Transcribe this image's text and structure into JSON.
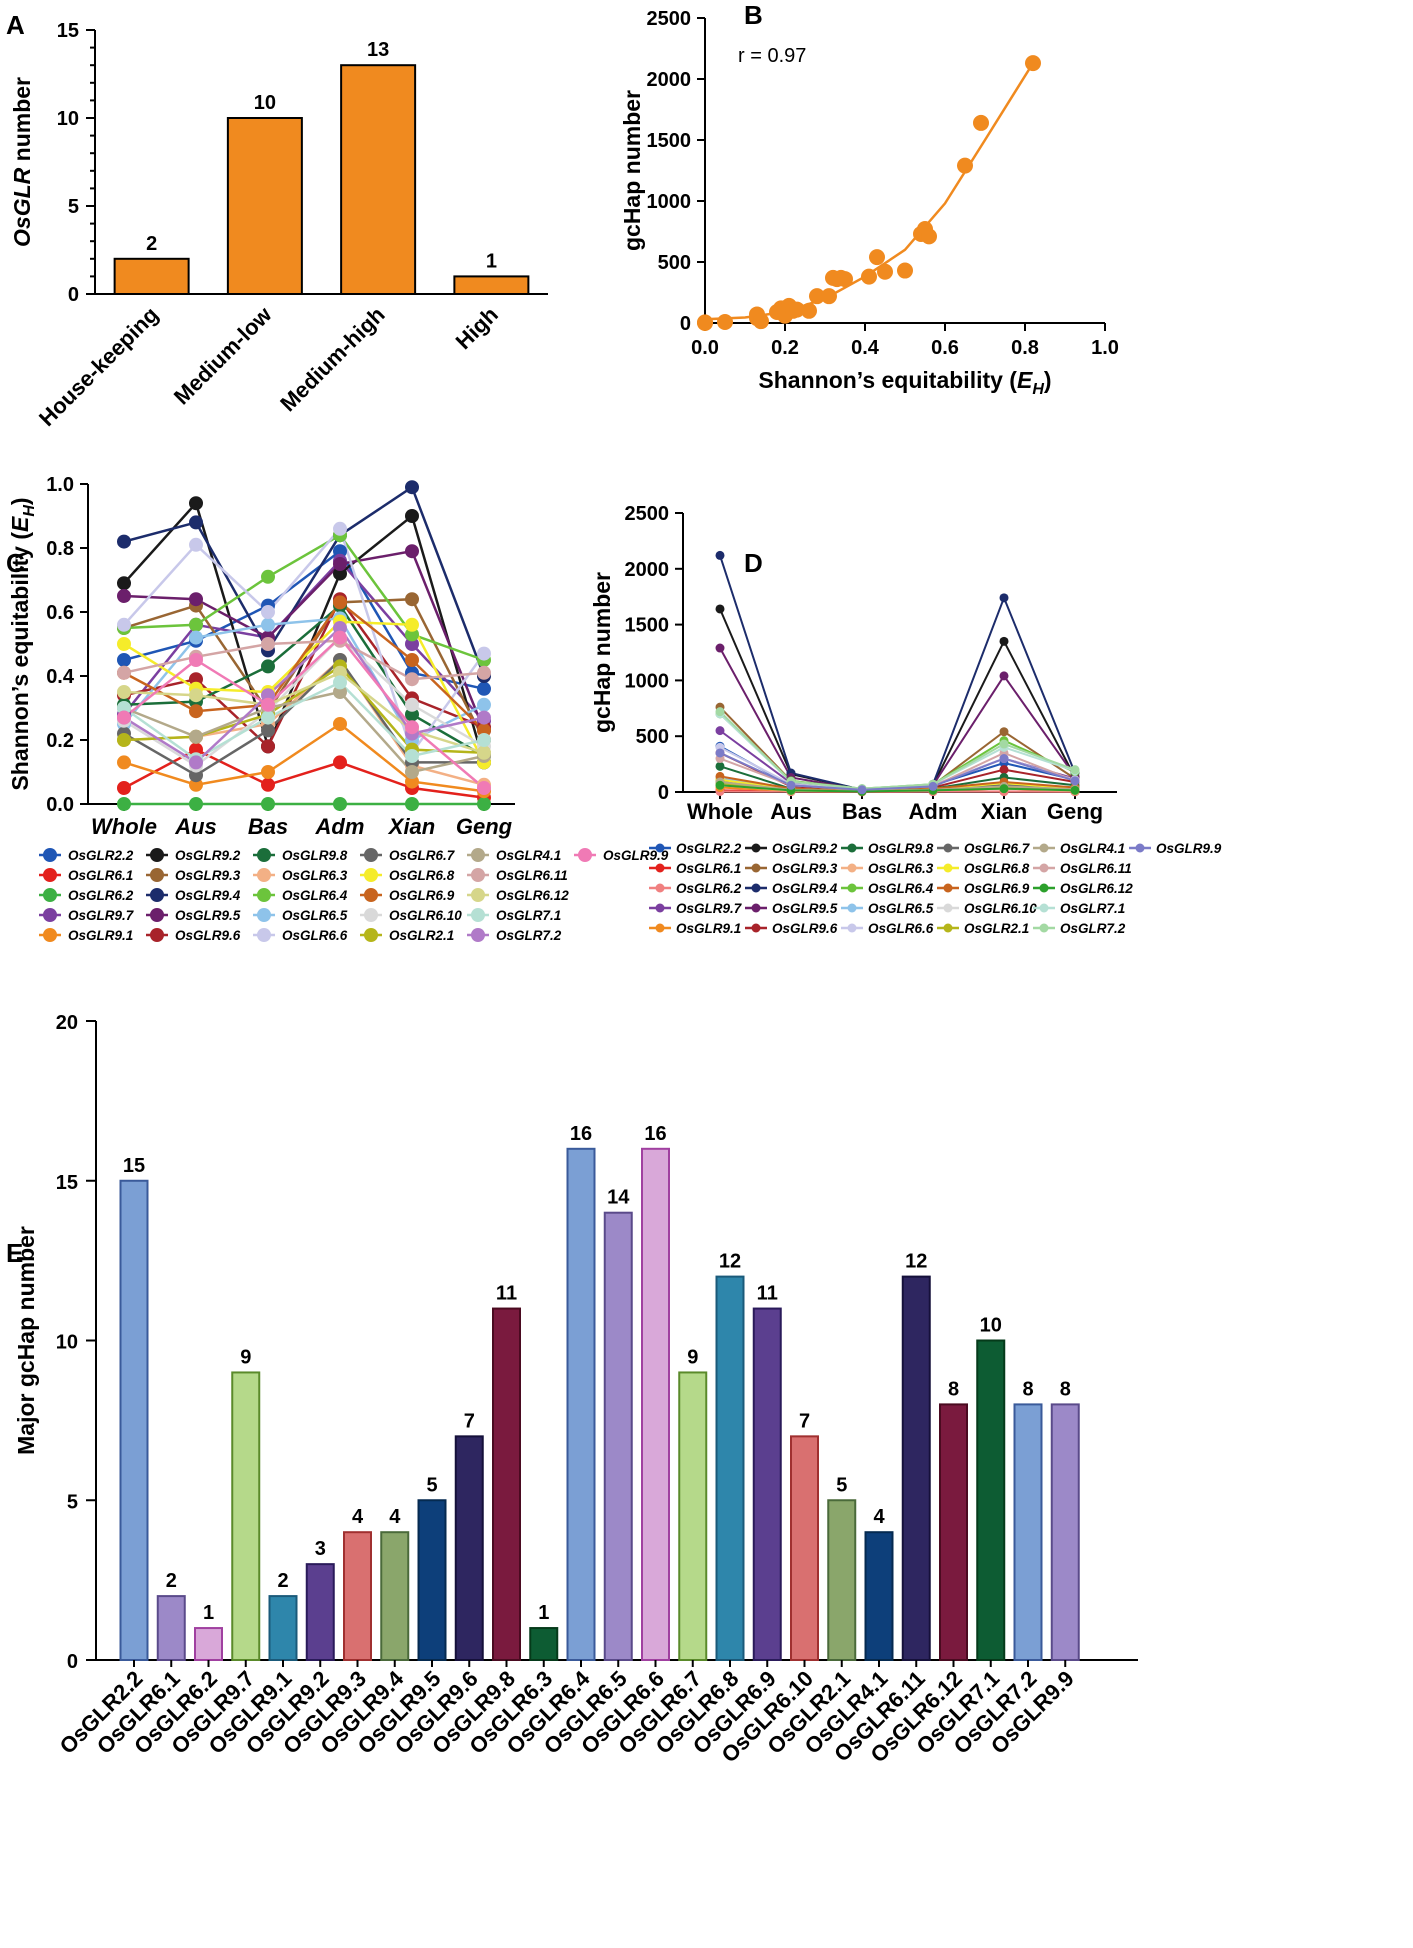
{
  "figure": {
    "panel_labels": [
      "A",
      "B",
      "C",
      "D",
      "E"
    ]
  },
  "chart_data": [
    {
      "panel": "A",
      "type": "bar",
      "color": "#f08a1f",
      "categories": [
        "House-keeping",
        "Medium-low",
        "Medium-high",
        "High"
      ],
      "values": [
        2,
        10,
        13,
        1
      ],
      "ylabel_italic": "OsGLR",
      "ylabel_rest": " number",
      "ylim": [
        0,
        15
      ],
      "yticks": [
        0,
        5,
        10,
        15
      ]
    },
    {
      "panel": "B",
      "type": "scatter",
      "color": "#f08a1f",
      "annotation": "r = 0.97",
      "xlabel_pre": "Shannon’s equitability (",
      "xlabel_var": "E",
      "xlabel_sub": "H",
      "xlabel_post": ")",
      "ylabel": "gcHap number",
      "xlim": [
        0,
        1
      ],
      "ylim": [
        0,
        2500
      ],
      "xticks": [
        0.0,
        0.2,
        0.4,
        0.6,
        0.8,
        1.0
      ],
      "xtick_labels": [
        "0.0",
        "0.2",
        "0.4",
        "0.6",
        "0.8",
        "1.0"
      ],
      "yticks": [
        0,
        500,
        1000,
        1500,
        2000,
        2500
      ],
      "points": [
        [
          0,
          0
        ],
        [
          0,
          5
        ],
        [
          0.05,
          8
        ],
        [
          0.13,
          40
        ],
        [
          0.13,
          70
        ],
        [
          0.14,
          15
        ],
        [
          0.18,
          90
        ],
        [
          0.19,
          120
        ],
        [
          0.2,
          60
        ],
        [
          0.21,
          140
        ],
        [
          0.22,
          100
        ],
        [
          0.23,
          110
        ],
        [
          0.26,
          100
        ],
        [
          0.28,
          220
        ],
        [
          0.31,
          220
        ],
        [
          0.32,
          370
        ],
        [
          0.33,
          360
        ],
        [
          0.34,
          370
        ],
        [
          0.35,
          360
        ],
        [
          0.41,
          380
        ],
        [
          0.43,
          540
        ],
        [
          0.45,
          420
        ],
        [
          0.5,
          430
        ],
        [
          0.54,
          730
        ],
        [
          0.55,
          770
        ],
        [
          0.56,
          710
        ],
        [
          0.65,
          1290
        ],
        [
          0.69,
          1640
        ],
        [
          0.82,
          2130
        ]
      ],
      "fit_curve": [
        [
          0,
          30
        ],
        [
          0.1,
          45
        ],
        [
          0.2,
          90
        ],
        [
          0.3,
          200
        ],
        [
          0.4,
          380
        ],
        [
          0.5,
          600
        ],
        [
          0.6,
          980
        ],
        [
          0.7,
          1500
        ],
        [
          0.82,
          2130
        ]
      ]
    },
    {
      "panel": "C",
      "type": "line",
      "categories": [
        "Whole",
        "Aus",
        "Bas",
        "Adm",
        "Xian",
        "Geng"
      ],
      "ylabel_pre": "Shannon’s equitability (",
      "ylabel_var": "E",
      "ylabel_sub": "H",
      "ylabel_post": ")",
      "ylim": [
        0,
        1
      ],
      "yticks": [
        0.0,
        0.2,
        0.4,
        0.6,
        0.8,
        1.0
      ],
      "ytick_labels": [
        "0.0",
        "0.2",
        "0.4",
        "0.6",
        "0.8",
        "1.0"
      ],
      "series": [
        {
          "name": "OsGLR2.2",
          "color": "#1f56b5",
          "values": [
            0.45,
            0.51,
            0.62,
            0.79,
            0.41,
            0.36
          ]
        },
        {
          "name": "OsGLR6.1",
          "color": "#e3211c",
          "values": [
            0.05,
            0.17,
            0.06,
            0.13,
            0.05,
            0.02
          ]
        },
        {
          "name": "OsGLR6.2",
          "color": "#3cb043",
          "values": [
            0,
            0,
            0,
            0,
            0,
            0
          ]
        },
        {
          "name": "OsGLR9.7",
          "color": "#7b3fa0",
          "values": [
            0.28,
            0.56,
            0.52,
            0.76,
            0.5,
            0.26
          ]
        },
        {
          "name": "OsGLR9.1",
          "color": "#f08a1f",
          "values": [
            0.13,
            0.06,
            0.1,
            0.25,
            0.07,
            0.04
          ]
        },
        {
          "name": "OsGLR9.2",
          "color": "#1a1a1a",
          "values": [
            0.69,
            0.94,
            0.18,
            0.72,
            0.9,
            0.13
          ]
        },
        {
          "name": "OsGLR9.3",
          "color": "#996633",
          "values": [
            0.55,
            0.62,
            0.29,
            0.63,
            0.64,
            0.2
          ]
        },
        {
          "name": "OsGLR9.4",
          "color": "#1c2c6b",
          "values": [
            0.82,
            0.88,
            0.48,
            0.84,
            0.99,
            0.4
          ]
        },
        {
          "name": "OsGLR9.5",
          "color": "#6b1f6b",
          "values": [
            0.65,
            0.64,
            0.52,
            0.75,
            0.79,
            0.23
          ]
        },
        {
          "name": "OsGLR9.6",
          "color": "#a8232a",
          "values": [
            0.34,
            0.39,
            0.18,
            0.64,
            0.33,
            0.24
          ]
        },
        {
          "name": "OsGLR9.8",
          "color": "#1b6e3a",
          "values": [
            0.31,
            0.32,
            0.43,
            0.62,
            0.28,
            0.15
          ]
        },
        {
          "name": "OsGLR6.3",
          "color": "#f3b085",
          "values": [
            0.2,
            0.21,
            0.25,
            0.45,
            0.12,
            0.06
          ]
        },
        {
          "name": "OsGLR6.4",
          "color": "#6cc43c",
          "values": [
            0.55,
            0.56,
            0.71,
            0.84,
            0.53,
            0.45
          ]
        },
        {
          "name": "OsGLR6.5",
          "color": "#8ec3ea",
          "values": [
            0.25,
            0.52,
            0.56,
            0.58,
            0.2,
            0.31
          ]
        },
        {
          "name": "OsGLR6.6",
          "color": "#c8c8ea",
          "values": [
            0.56,
            0.81,
            0.6,
            0.86,
            0.16,
            0.47
          ]
        },
        {
          "name": "OsGLR6.7",
          "color": "#666666",
          "values": [
            0.22,
            0.09,
            0.23,
            0.45,
            0.13,
            0.13
          ]
        },
        {
          "name": "OsGLR6.8",
          "color": "#f5ec2a",
          "values": [
            0.5,
            0.36,
            0.35,
            0.57,
            0.56,
            0.13
          ]
        },
        {
          "name": "OsGLR6.9",
          "color": "#c8641e",
          "values": [
            0.41,
            0.29,
            0.31,
            0.63,
            0.45,
            0.23
          ]
        },
        {
          "name": "OsGLR6.10",
          "color": "#d9d9d9",
          "values": [
            0.26,
            0.12,
            0.29,
            0.52,
            0.31,
            0.18
          ]
        },
        {
          "name": "OsGLR2.1",
          "color": "#b5b51a",
          "values": [
            0.2,
            0.21,
            0.28,
            0.43,
            0.17,
            0.16
          ]
        },
        {
          "name": "OsGLR4.1",
          "color": "#b3a98a",
          "values": [
            0.3,
            0.21,
            0.3,
            0.35,
            0.1,
            0.15
          ]
        },
        {
          "name": "OsGLR6.11",
          "color": "#d4a5a5",
          "values": [
            0.41,
            0.46,
            0.5,
            0.51,
            0.39,
            0.41
          ]
        },
        {
          "name": "OsGLR6.12",
          "color": "#d6d68a",
          "values": [
            0.35,
            0.34,
            0.31,
            0.41,
            0.23,
            0.16
          ]
        },
        {
          "name": "OsGLR7.1",
          "color": "#b5e0d4",
          "values": [
            0.3,
            0.14,
            0.27,
            0.38,
            0.15,
            0.2
          ]
        },
        {
          "name": "OsGLR7.2",
          "color": "#b07ac8",
          "values": [
            0.27,
            0.13,
            0.34,
            0.55,
            0.22,
            0.27
          ]
        },
        {
          "name": "OsGLR9.9",
          "color": "#f07ab5",
          "values": [
            0.27,
            0.45,
            0.31,
            0.52,
            0.24,
            0.05
          ]
        }
      ]
    },
    {
      "panel": "D",
      "type": "line",
      "categories": [
        "Whole",
        "Aus",
        "Bas",
        "Adm",
        "Xian",
        "Geng"
      ],
      "ylabel": "gcHap number",
      "ylim": [
        0,
        2500
      ],
      "yticks": [
        0,
        500,
        1000,
        1500,
        2000,
        2500
      ],
      "series": [
        {
          "name": "OsGLR2.2",
          "color": "#1f56b5",
          "values": [
            410,
            60,
            20,
            60,
            260,
            110
          ]
        },
        {
          "name": "OsGLR6.1",
          "color": "#e3211c",
          "values": [
            15,
            5,
            2,
            5,
            5,
            3
          ]
        },
        {
          "name": "OsGLR6.2",
          "color": "#f08080",
          "values": [
            5,
            3,
            2,
            3,
            3,
            2
          ]
        },
        {
          "name": "OsGLR9.7",
          "color": "#7b3fa0",
          "values": [
            550,
            80,
            20,
            60,
            300,
            120
          ]
        },
        {
          "name": "OsGLR9.1",
          "color": "#f08a1f",
          "values": [
            40,
            10,
            5,
            15,
            30,
            10
          ]
        },
        {
          "name": "OsGLR9.2",
          "color": "#1a1a1a",
          "values": [
            1640,
            160,
            20,
            60,
            1350,
            130
          ]
        },
        {
          "name": "OsGLR9.3",
          "color": "#996633",
          "values": [
            760,
            100,
            20,
            60,
            540,
            120
          ]
        },
        {
          "name": "OsGLR9.4",
          "color": "#1c2c6b",
          "values": [
            2120,
            170,
            20,
            70,
            1740,
            170
          ]
        },
        {
          "name": "OsGLR9.5",
          "color": "#6b1f6b",
          "values": [
            1290,
            130,
            20,
            60,
            1040,
            140
          ]
        },
        {
          "name": "OsGLR9.6",
          "color": "#a8232a",
          "values": [
            350,
            50,
            15,
            40,
            200,
            90
          ]
        },
        {
          "name": "OsGLR9.8",
          "color": "#1b6e3a",
          "values": [
            230,
            30,
            10,
            30,
            130,
            60
          ]
        },
        {
          "name": "OsGLR6.3",
          "color": "#f3b085",
          "values": [
            60,
            10,
            5,
            15,
            30,
            10
          ]
        },
        {
          "name": "OsGLR6.4",
          "color": "#6cc43c",
          "values": [
            700,
            100,
            30,
            70,
            460,
            180
          ]
        },
        {
          "name": "OsGLR6.5",
          "color": "#8ec3ea",
          "values": [
            120,
            30,
            10,
            30,
            60,
            40
          ]
        },
        {
          "name": "OsGLR6.6",
          "color": "#c8c8ea",
          "values": [
            400,
            70,
            20,
            60,
            300,
            110
          ]
        },
        {
          "name": "OsGLR6.7",
          "color": "#666666",
          "values": [
            100,
            20,
            10,
            20,
            60,
            30
          ]
        },
        {
          "name": "OsGLR6.8",
          "color": "#f5ec2a",
          "values": [
            110,
            25,
            10,
            25,
            80,
            30
          ]
        },
        {
          "name": "OsGLR6.9",
          "color": "#c8641e",
          "values": [
            140,
            30,
            10,
            30,
            90,
            40
          ]
        },
        {
          "name": "OsGLR6.10",
          "color": "#d9d9d9",
          "values": [
            70,
            15,
            8,
            20,
            40,
            20
          ]
        },
        {
          "name": "OsGLR2.1",
          "color": "#b5b51a",
          "values": [
            80,
            15,
            8,
            20,
            40,
            20
          ]
        },
        {
          "name": "OsGLR4.1",
          "color": "#b3a98a",
          "values": [
            90,
            20,
            8,
            20,
            50,
            25
          ]
        },
        {
          "name": "OsGLR6.11",
          "color": "#d4a5a5",
          "values": [
            300,
            60,
            20,
            50,
            350,
            100
          ]
        },
        {
          "name": "OsGLR6.12",
          "color": "#2ca02c",
          "values": [
            60,
            15,
            5,
            15,
            30,
            15
          ]
        },
        {
          "name": "OsGLR7.1",
          "color": "#b5e0d4",
          "values": [
            700,
            90,
            30,
            70,
            400,
            190
          ]
        },
        {
          "name": "OsGLR7.2",
          "color": "#a3d9a3",
          "values": [
            720,
            95,
            30,
            70,
            430,
            200
          ]
        },
        {
          "name": "OsGLR9.9",
          "color": "#7b7bc8",
          "values": [
            350,
            60,
            20,
            50,
            300,
            100
          ]
        }
      ]
    },
    {
      "panel": "E",
      "type": "bar",
      "ylabel": "Major gcHap number",
      "ylim": [
        0,
        20
      ],
      "yticks": [
        0,
        5,
        10,
        15,
        20
      ],
      "categories": [
        "OsGLR2.2",
        "OsGLR6.1",
        "OsGLR6.2",
        "OsGLR9.7",
        "OsGLR9.1",
        "OsGLR9.2",
        "OsGLR9.3",
        "OsGLR9.4",
        "OsGLR9.5",
        "OsGLR9.6",
        "OsGLR9.8",
        "OsGLR6.3",
        "OsGLR6.4",
        "OsGLR6.5",
        "OsGLR6.6",
        "OsGLR6.7",
        "OsGLR6.8",
        "OsGLR6.9",
        "OsGLR6.10",
        "OsGLR2.1",
        "OsGLR4.1",
        "OsGLR6.11",
        "OsGLR6.12",
        "OsGLR7.1",
        "OsGLR7.2",
        "OsGLR9.9"
      ],
      "values": [
        15,
        2,
        1,
        9,
        2,
        3,
        4,
        4,
        5,
        7,
        11,
        1,
        16,
        14,
        16,
        9,
        12,
        11,
        7,
        5,
        4,
        12,
        8,
        10,
        8,
        8
      ],
      "fills": [
        "#7b9fd4",
        "#9c89c8",
        "#d9a8d9",
        "#b5d98a",
        "#2e86ab",
        "#5b3f8f",
        "#d97070",
        "#8aa66b",
        "#0d3f7a",
        "#2e2660",
        "#7a1a3e",
        "#0d5c33",
        "#7b9fd4",
        "#9c89c8",
        "#d9a8d9",
        "#b5d98a",
        "#2e86ab",
        "#5b3f8f",
        "#d97070",
        "#8aa66b",
        "#0d3f7a",
        "#2e2660",
        "#7a1a3e",
        "#0d5c33",
        "#7b9fd4",
        "#9c89c8"
      ],
      "strokes": [
        "#3a5a9a",
        "#5a4a8a",
        "#a040a0",
        "#5a8a2a",
        "#1a5a7a",
        "#2a1a5a",
        "#a03030",
        "#4a6a3a",
        "#052a50",
        "#15103a",
        "#4a0a20",
        "#053a1a",
        "#3a5a9a",
        "#5a4a8a",
        "#a040a0",
        "#5a8a2a",
        "#1a5a7a",
        "#2a1a5a",
        "#a03030",
        "#4a6a3a",
        "#052a50",
        "#15103a",
        "#4a0a20",
        "#053a1a",
        "#3a5a9a",
        "#5a4a8a"
      ]
    }
  ]
}
